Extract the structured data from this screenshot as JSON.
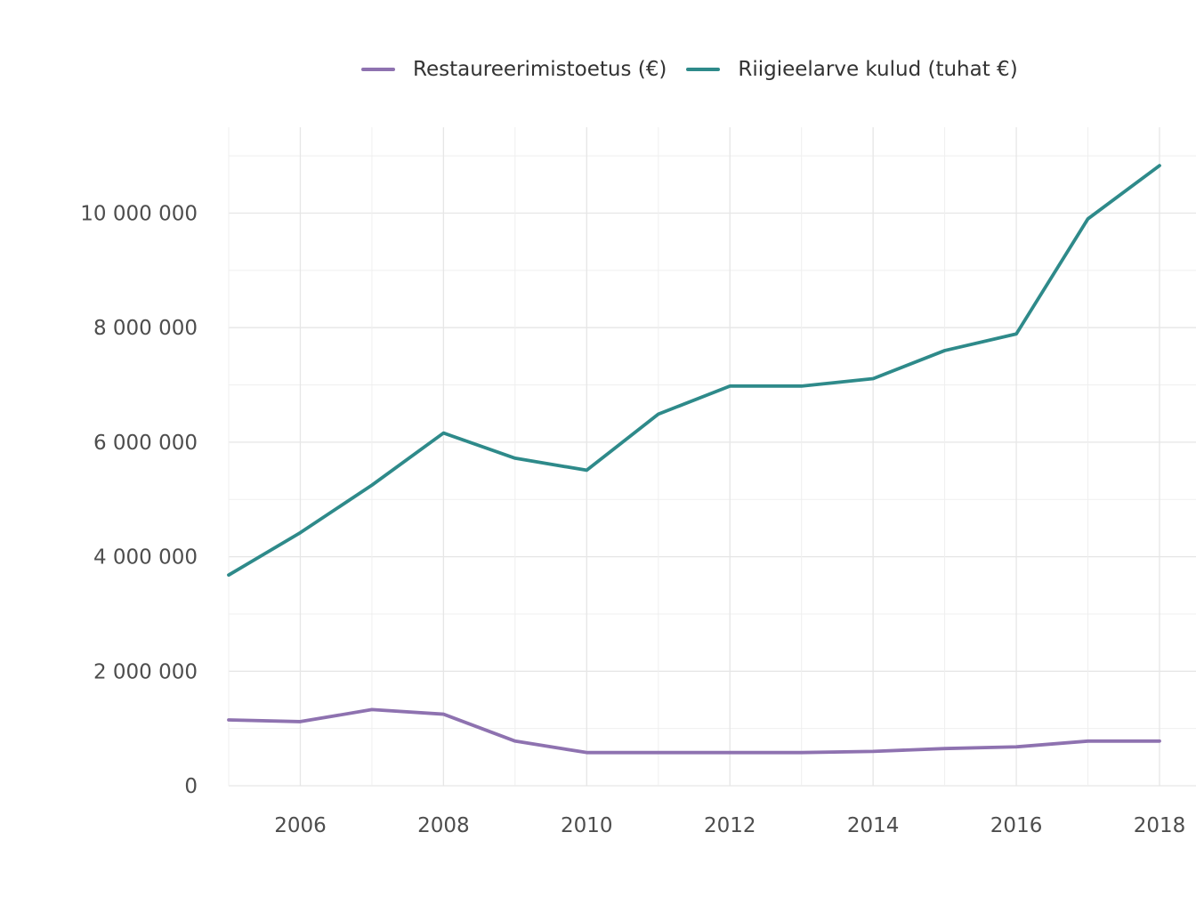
{
  "chart_data": {
    "type": "line",
    "x": [
      2005,
      2006,
      2007,
      2008,
      2009,
      2010,
      2011,
      2012,
      2013,
      2014,
      2015,
      2016,
      2017,
      2018
    ],
    "series": [
      {
        "name": "Restaureerimistoetus (€)",
        "color": "#8e72b0",
        "values": [
          1150000,
          1120000,
          1330000,
          1250000,
          780000,
          580000,
          580000,
          580000,
          580000,
          600000,
          650000,
          680000,
          780000,
          780000
        ]
      },
      {
        "name": "Riigieelarve kulud (tuhat €)",
        "color": "#2e8a8a",
        "values": [
          3680000,
          4420000,
          5250000,
          6160000,
          5720000,
          5510000,
          6490000,
          6980000,
          6980000,
          7110000,
          7600000,
          7890000,
          9900000,
          10830000
        ]
      }
    ],
    "xticks": [
      2006,
      2008,
      2010,
      2012,
      2014,
      2016,
      2018
    ],
    "xtick_labels": [
      "2006",
      "2008",
      "2010",
      "2012",
      "2014",
      "2016",
      "2018"
    ],
    "yticks": [
      0,
      2000000,
      4000000,
      6000000,
      8000000,
      10000000
    ],
    "ytick_labels": [
      "0",
      "2 000 000",
      "4 000 000",
      "6 000 000",
      "8 000 000",
      "10 000 000"
    ],
    "xlim": [
      2005,
      2018.5
    ],
    "ylim": [
      0,
      11500000
    ],
    "grid": true,
    "legend_position": "top",
    "title": "",
    "xlabel": "",
    "ylabel": ""
  }
}
